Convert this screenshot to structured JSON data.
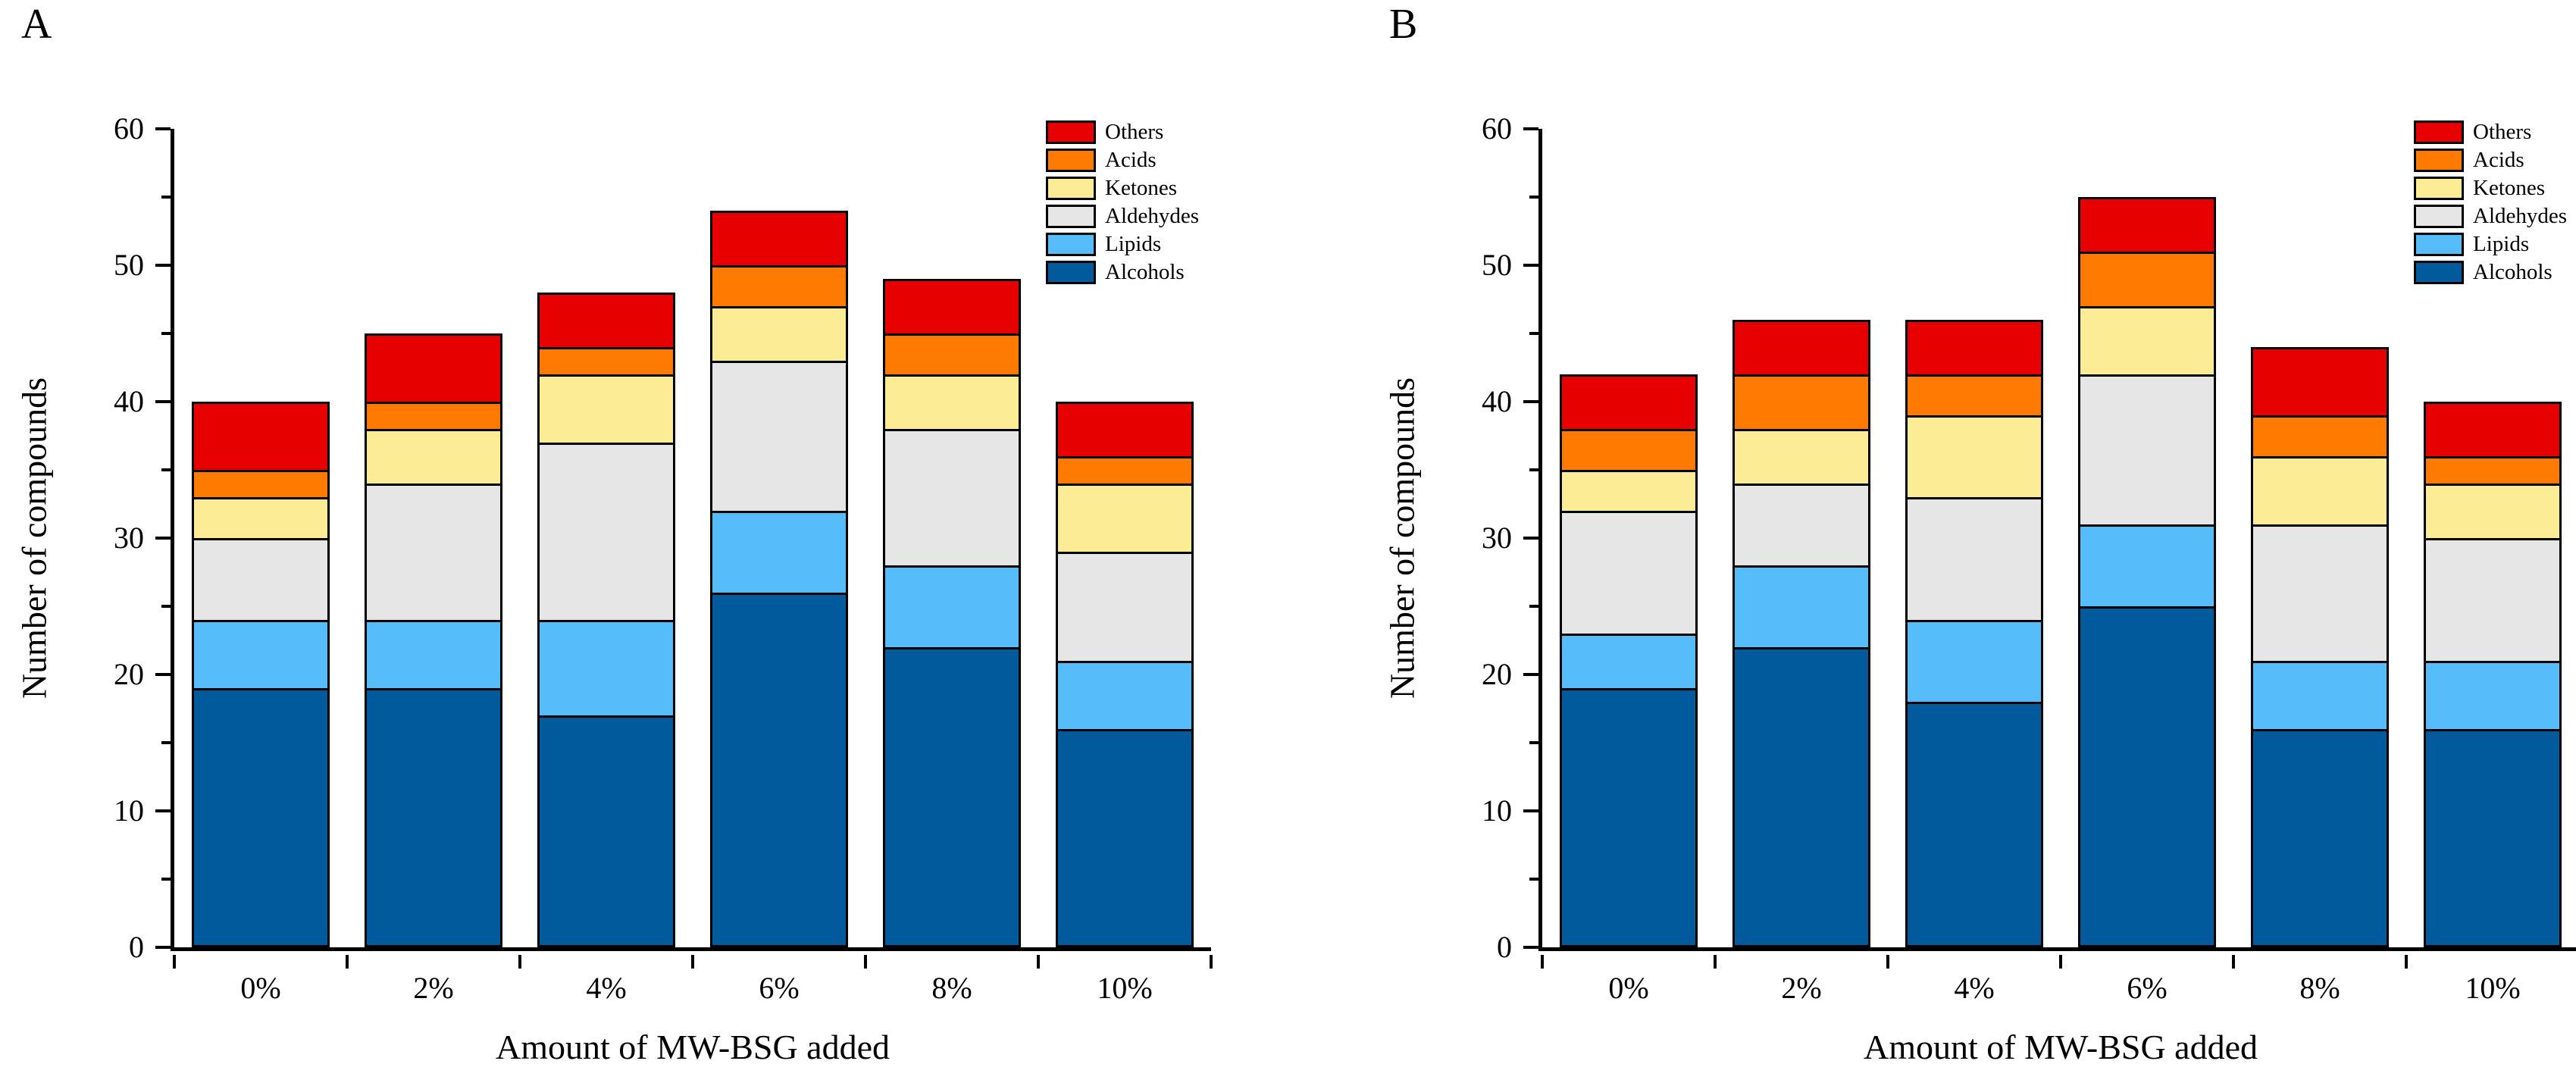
{
  "panels": [
    {
      "label": "A"
    },
    {
      "label": "B"
    }
  ],
  "chart_data": [
    {
      "type": "bar",
      "stacked": true,
      "panel": "A",
      "title": "",
      "xlabel": "Amount of MW-BSG added",
      "ylabel": "Number of compounds",
      "categories": [
        "0%",
        "2%",
        "4%",
        "6%",
        "8%",
        "10%"
      ],
      "series": [
        {
          "name": "Alcohols",
          "color": "#005a9c",
          "values": [
            19,
            19,
            17,
            26,
            22,
            16
          ]
        },
        {
          "name": "Lipids",
          "color": "#56bcfa",
          "values": [
            5,
            5,
            7,
            6,
            6,
            5
          ]
        },
        {
          "name": "Aldehydes",
          "color": "#e6e6e6",
          "values": [
            6,
            10,
            13,
            11,
            10,
            8
          ]
        },
        {
          "name": "Ketones",
          "color": "#fdec96",
          "values": [
            3,
            4,
            5,
            4,
            4,
            5
          ]
        },
        {
          "name": "Acids",
          "color": "#ff7a00",
          "values": [
            2,
            2,
            2,
            3,
            3,
            2
          ]
        },
        {
          "name": "Others",
          "color": "#e60000",
          "values": [
            5,
            5,
            4,
            4,
            4,
            4
          ]
        }
      ],
      "totals": [
        40,
        45,
        48,
        54,
        49,
        40
      ],
      "ylim": [
        0,
        60
      ],
      "ytick_step": 10,
      "yminor_step": 5,
      "grid": false,
      "legend_position": "top-right",
      "legend_order": [
        "Others",
        "Acids",
        "Ketones",
        "Aldehydes",
        "Lipids",
        "Alcohols"
      ]
    },
    {
      "type": "bar",
      "stacked": true,
      "panel": "B",
      "title": "",
      "xlabel": "Amount of MW-BSG added",
      "ylabel": "Number of compounds",
      "categories": [
        "0%",
        "2%",
        "4%",
        "6%",
        "8%",
        "10%"
      ],
      "series": [
        {
          "name": "Alcohols",
          "color": "#005a9c",
          "values": [
            19,
            22,
            18,
            25,
            16,
            16
          ]
        },
        {
          "name": "Lipids",
          "color": "#56bcfa",
          "values": [
            4,
            6,
            6,
            6,
            5,
            5
          ]
        },
        {
          "name": "Aldehydes",
          "color": "#e6e6e6",
          "values": [
            9,
            6,
            9,
            11,
            10,
            9
          ]
        },
        {
          "name": "Ketones",
          "color": "#fdec96",
          "values": [
            3,
            4,
            6,
            5,
            5,
            4
          ]
        },
        {
          "name": "Acids",
          "color": "#ff7a00",
          "values": [
            3,
            4,
            3,
            4,
            3,
            2
          ]
        },
        {
          "name": "Others",
          "color": "#e60000",
          "values": [
            4,
            4,
            4,
            4,
            5,
            4
          ]
        }
      ],
      "totals": [
        42,
        46,
        46,
        55,
        44,
        40
      ],
      "ylim": [
        0,
        60
      ],
      "ytick_step": 10,
      "yminor_step": 5,
      "grid": false,
      "legend_position": "top-right",
      "legend_order": [
        "Others",
        "Acids",
        "Ketones",
        "Aldehydes",
        "Lipids",
        "Alcohols"
      ]
    }
  ]
}
